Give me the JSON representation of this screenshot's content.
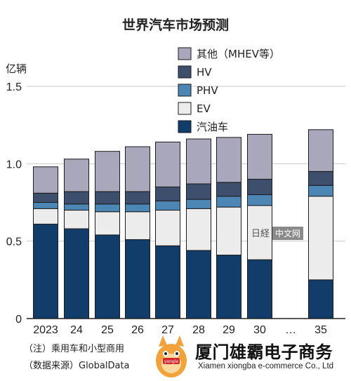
{
  "chart_data": {
    "type": "bar",
    "stacked": true,
    "title": "世界汽车市场预测",
    "ylabel": "亿辆",
    "xlabel": "",
    "ylim": [
      0,
      1.5
    ],
    "yticks": [
      "0",
      "0.5",
      "1.0",
      "1.5"
    ],
    "categories": [
      "2023",
      "24",
      "25",
      "26",
      "27",
      "28",
      "29",
      "30",
      "…",
      "35"
    ],
    "legend_position": "top-right",
    "grid": true,
    "series": [
      {
        "name": "汽油车",
        "color": "#123d6b",
        "values": [
          0.61,
          0.58,
          0.54,
          0.51,
          0.47,
          0.44,
          0.41,
          0.38,
          null,
          0.25
        ]
      },
      {
        "name": "EV",
        "color": "#ececec",
        "values": [
          0.1,
          0.12,
          0.15,
          0.18,
          0.23,
          0.27,
          0.31,
          0.35,
          null,
          0.54
        ]
      },
      {
        "name": "PHV",
        "color": "#4b86b4",
        "values": [
          0.04,
          0.04,
          0.05,
          0.05,
          0.06,
          0.06,
          0.07,
          0.07,
          null,
          0.07
        ]
      },
      {
        "name": "HV",
        "color": "#3e4f6e",
        "values": [
          0.06,
          0.08,
          0.08,
          0.08,
          0.09,
          0.1,
          0.09,
          0.1,
          null,
          0.09
        ]
      },
      {
        "name": "其他（MHEV等）",
        "color": "#a9a7bb",
        "values": [
          0.17,
          0.21,
          0.26,
          0.29,
          0.29,
          0.29,
          0.29,
          0.29,
          null,
          0.27
        ]
      }
    ]
  },
  "footnotes": {
    "note": "（注）乘用车和小型商用",
    "source": "（数据来源）GlobalData"
  },
  "watermark": {
    "brand": "厦门雄霸电子商务",
    "sub": "Xiamen xiongba e-commerce Co., Ltd",
    "logo_text": "中文网",
    "logo_mark": "日経",
    "mascot_label": "yongle"
  }
}
